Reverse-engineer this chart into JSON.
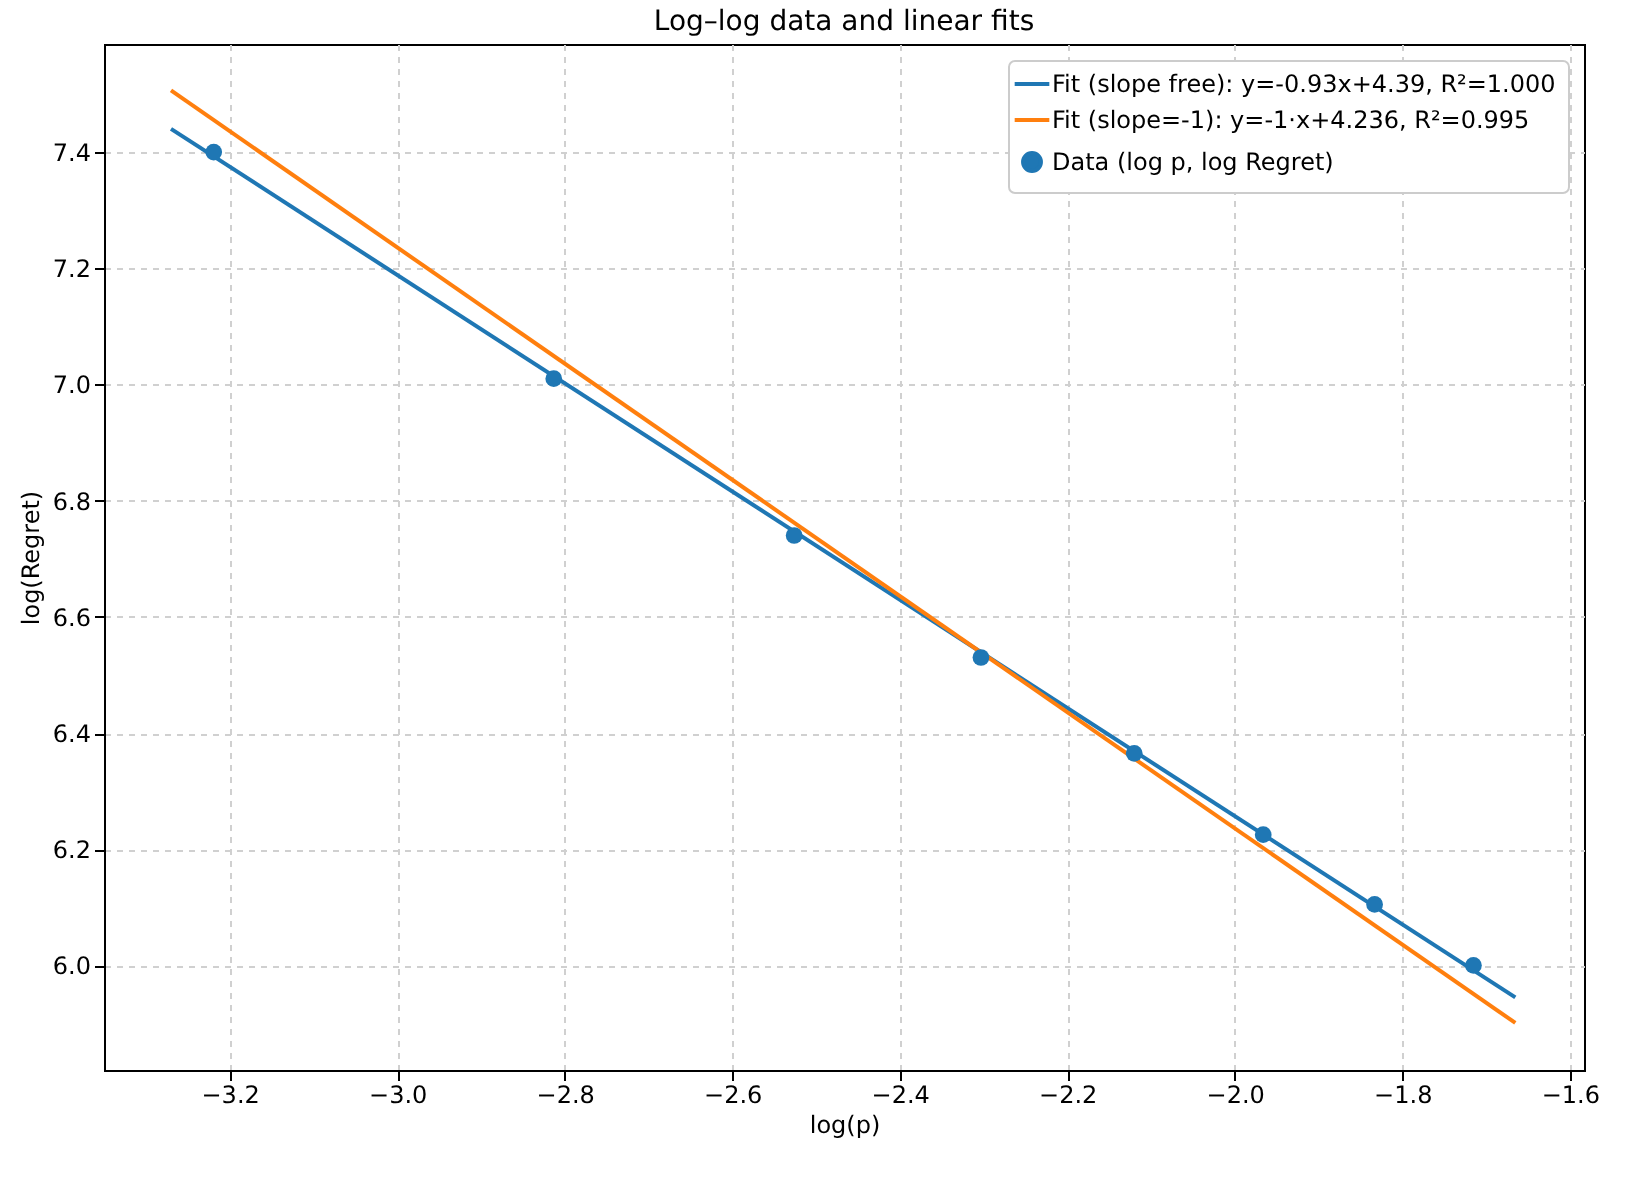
{
  "chart_data": {
    "type": "line",
    "title": "Log–log data and linear fits",
    "xlabel": "log(p)",
    "ylabel": "log(Regret)",
    "xlim": [
      -3.35,
      -1.583
    ],
    "ylim": [
      5.82,
      7.586
    ],
    "xticks": [
      -3.2,
      {
        "value": -3.0,
        "label": "−3.0"
      },
      -2.8,
      -2.6,
      -2.4,
      -2.2,
      {
        "value": -2.0,
        "label": "−2.0"
      },
      -1.8,
      -1.6
    ],
    "yticks": [
      {
        "value": 6.0,
        "label": "6.0"
      },
      6.2,
      6.4,
      6.6,
      6.8,
      {
        "value": 7.0,
        "label": "7.0"
      },
      7.2,
      7.4
    ],
    "grid": true,
    "legend": "top right",
    "series": [
      {
        "name": "Fit (slope free): y=-0.93x+4.39, R²=1.000",
        "color": "#1f77b4",
        "x": [
          -3.27,
          -1.665
        ],
        "values": [
          7.44,
          5.945
        ]
      },
      {
        "name": "Fit (slope=-1): y=-1·x+4.236, R²=0.995",
        "color": "#ff7f0e",
        "x": [
          -3.27,
          -1.665
        ],
        "values": [
          7.506,
          5.901
        ]
      },
      {
        "type": "scatter",
        "name": "Data (log p, log Regret)",
        "color": "#1f77b4",
        "marker": "circle",
        "x": [
          -3.219,
          -2.813,
          -2.526,
          -2.303,
          -2.12,
          -1.966,
          -1.833,
          -1.715
        ],
        "values": [
          7.4,
          7.01,
          6.74,
          6.53,
          6.365,
          6.225,
          6.105,
          6.0
        ]
      }
    ]
  }
}
